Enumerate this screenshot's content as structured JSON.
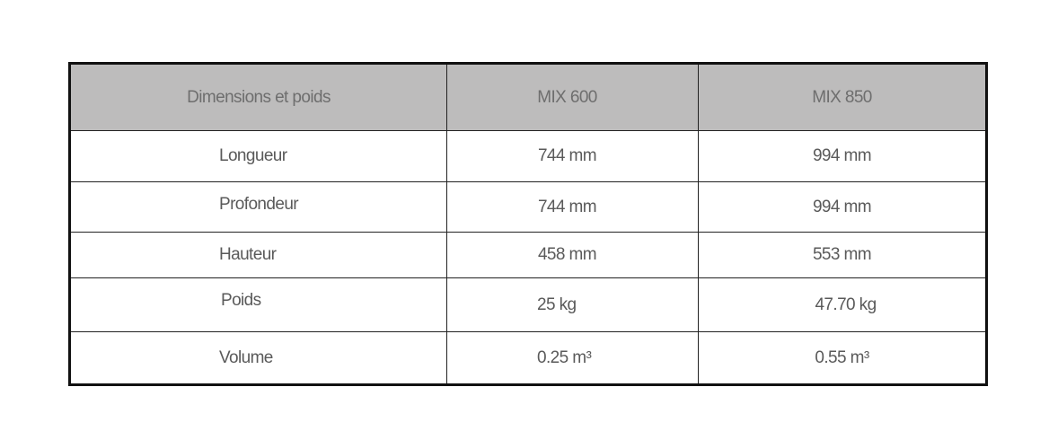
{
  "table": {
    "headers": [
      "Dimensions et poids",
      "MIX 600",
      "MIX 850"
    ],
    "rows": [
      {
        "label": "Longueur",
        "mix600": "744 mm",
        "mix850": "994 mm"
      },
      {
        "label": "Profondeur",
        "mix600": "744 mm",
        "mix850": "994 mm"
      },
      {
        "label": "Hauteur",
        "mix600": "458 mm",
        "mix850": "553 mm"
      },
      {
        "label": "Poids",
        "mix600": "25 kg",
        "mix850": "47.70 kg"
      },
      {
        "label": "Volume",
        "mix600": "0.25 m³",
        "mix850": "0.55 m³"
      }
    ]
  },
  "colors": {
    "header_bg": "#bdbcbc",
    "text": "#5a5a5a",
    "border": "#111111"
  }
}
